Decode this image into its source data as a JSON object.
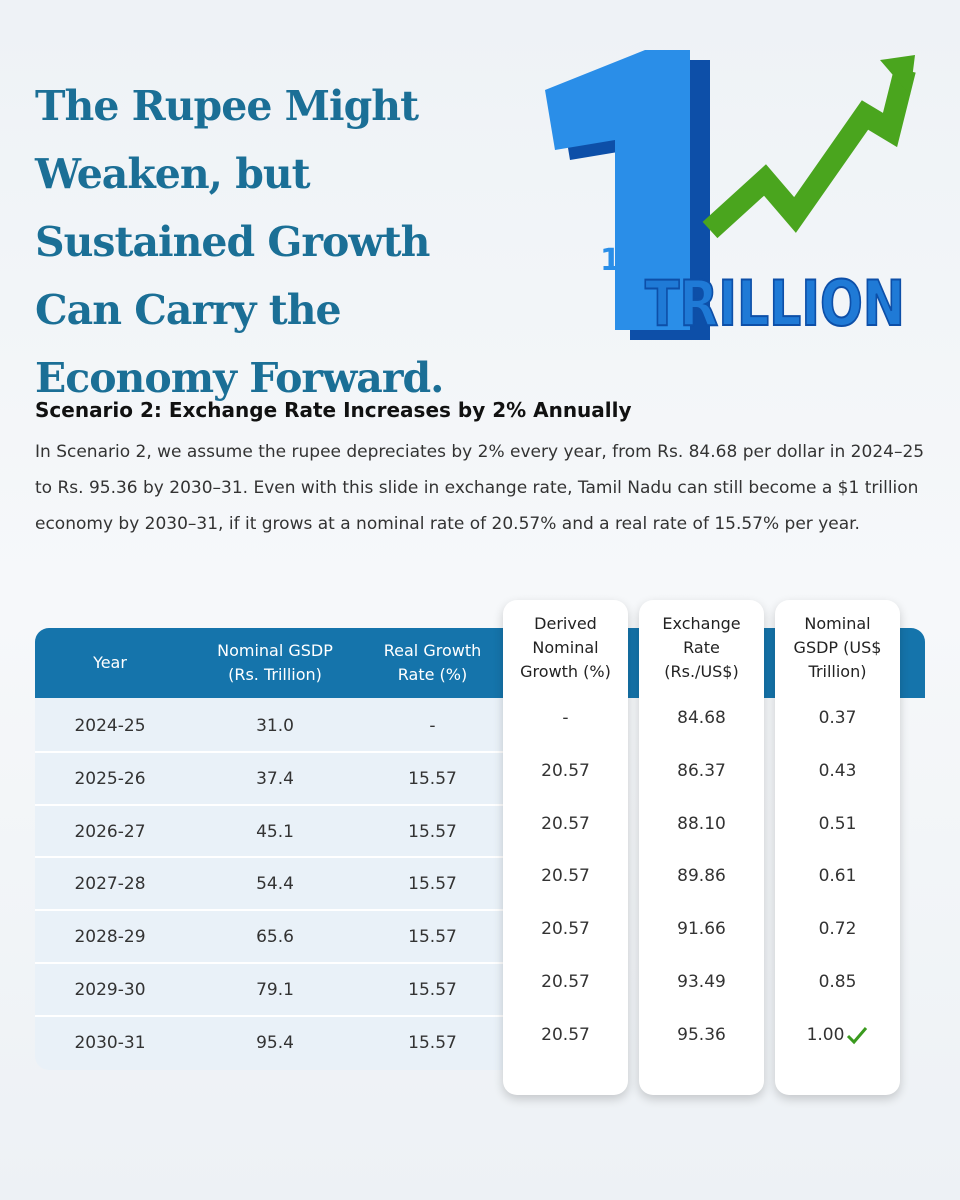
{
  "header": {
    "title": "The Rupee Might Weaken, but Sustained Growth Can Carry the Economy Forward.",
    "graphic": {
      "numeral": "1",
      "word": "TRILLION"
    }
  },
  "section": {
    "heading": "Scenario 2: Exchange Rate Increases by 2% Annually",
    "body": "In Scenario 2, we assume the rupee depreciates by 2% every year, from Rs. 84.68 per dollar in 2024–25 to Rs. 95.36 by 2030–31. Even with this slide in exchange rate, Tamil Nadu can still become a $1 trillion economy by 2030–31, if it grows at a nominal rate of 20.57% and a real rate of 15.57% per year."
  },
  "table": {
    "columns": [
      "Year",
      "Nominal GSDP (Rs. Trillion)",
      "Real Growth Rate (%)",
      "Derived Nominal Growth (%)",
      "Exchange Rate (Rs./US$)",
      "Nominal GSDP (US$ Trillion)"
    ],
    "rows": [
      [
        "2024-25",
        "31.0",
        "-",
        "-",
        "84.68",
        "0.37"
      ],
      [
        "2025-26",
        "37.4",
        "15.57",
        "20.57",
        "86.37",
        "0.43"
      ],
      [
        "2026-27",
        "45.1",
        "15.57",
        "20.57",
        "88.10",
        "0.51"
      ],
      [
        "2027-28",
        "54.4",
        "15.57",
        "20.57",
        "89.86",
        "0.61"
      ],
      [
        "2028-29",
        "65.6",
        "15.57",
        "20.57",
        "91.66",
        "0.72"
      ],
      [
        "2029-30",
        "79.1",
        "15.57",
        "20.57",
        "93.49",
        "0.85"
      ],
      [
        "2030-31",
        "95.4",
        "15.57",
        "20.57",
        "95.36",
        "1.00"
      ]
    ]
  }
}
